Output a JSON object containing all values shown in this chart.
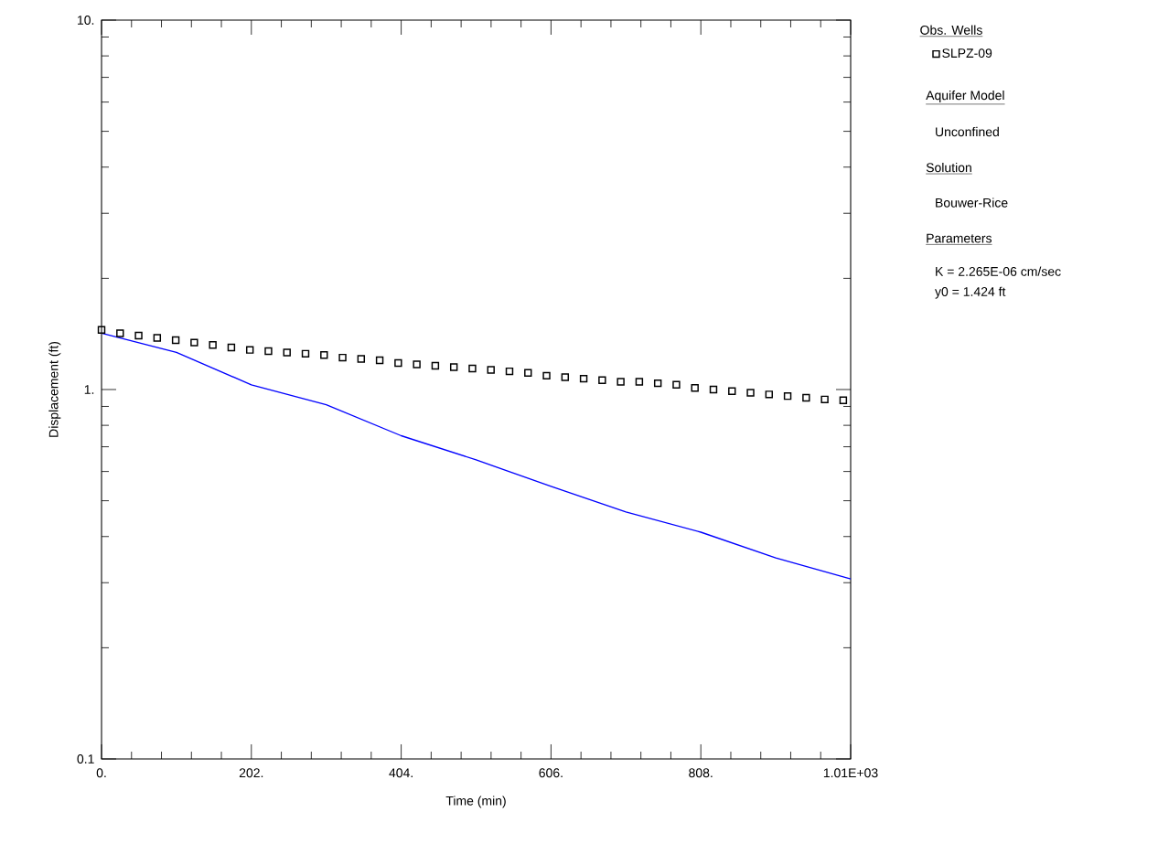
{
  "chart_data": {
    "type": "line",
    "xlabel": "Time (min)",
    "ylabel": "Displacement (ft)",
    "legend_title": "Obs. Wells",
    "xlim": [
      0,
      1010
    ],
    "ylim": [
      0.1,
      10
    ],
    "log": "y",
    "grid": false,
    "legend": "right",
    "xticks": [
      {
        "value": 0,
        "label": "0."
      },
      {
        "value": 202,
        "label": "202."
      },
      {
        "value": 404,
        "label": "404."
      },
      {
        "value": 606,
        "label": "606."
      },
      {
        "value": 808,
        "label": "808."
      },
      {
        "value": 1010,
        "label": "1.01E+03"
      }
    ],
    "yticks": [
      {
        "value": 0.1,
        "label": "0.1"
      },
      {
        "value": 1,
        "label": "1."
      },
      {
        "value": 10,
        "label": "10."
      }
    ],
    "series": [
      {
        "name": "SLPZ-09",
        "type": "scatter",
        "marker": "square",
        "color": "#000000",
        "x": [
          0,
          25,
          50,
          75,
          100,
          125,
          150,
          175,
          200,
          225,
          250,
          275,
          300,
          325,
          350,
          375,
          400,
          425,
          450,
          475,
          500,
          525,
          550,
          575,
          600,
          625,
          650,
          675,
          700,
          725,
          750,
          775,
          800,
          825,
          850,
          875,
          900,
          925,
          950,
          975,
          1000
        ],
        "values": [
          1.45,
          1.42,
          1.4,
          1.38,
          1.36,
          1.34,
          1.32,
          1.3,
          1.28,
          1.27,
          1.26,
          1.25,
          1.24,
          1.22,
          1.21,
          1.2,
          1.18,
          1.17,
          1.16,
          1.15,
          1.14,
          1.13,
          1.12,
          1.11,
          1.09,
          1.08,
          1.07,
          1.06,
          1.05,
          1.05,
          1.04,
          1.03,
          1.01,
          1.0,
          0.99,
          0.98,
          0.97,
          0.96,
          0.95,
          0.94,
          0.935
        ]
      },
      {
        "line_style": "solid",
        "color": "#0000ff",
        "x": [
          0,
          101,
          202,
          303,
          404,
          505,
          606,
          707,
          808,
          909,
          1010
        ],
        "values": [
          1.42,
          1.26,
          1.03,
          0.91,
          0.75,
          0.645,
          0.547,
          0.466,
          0.411,
          0.35,
          0.307
        ]
      }
    ],
    "annotations": [
      "Aquifer Model",
      "Unconfined",
      "Solution",
      "Bouwer-Rice",
      "Parameters",
      "K  = 2.265E-06 cm/sec",
      "y0 = 1.424 ft"
    ]
  }
}
